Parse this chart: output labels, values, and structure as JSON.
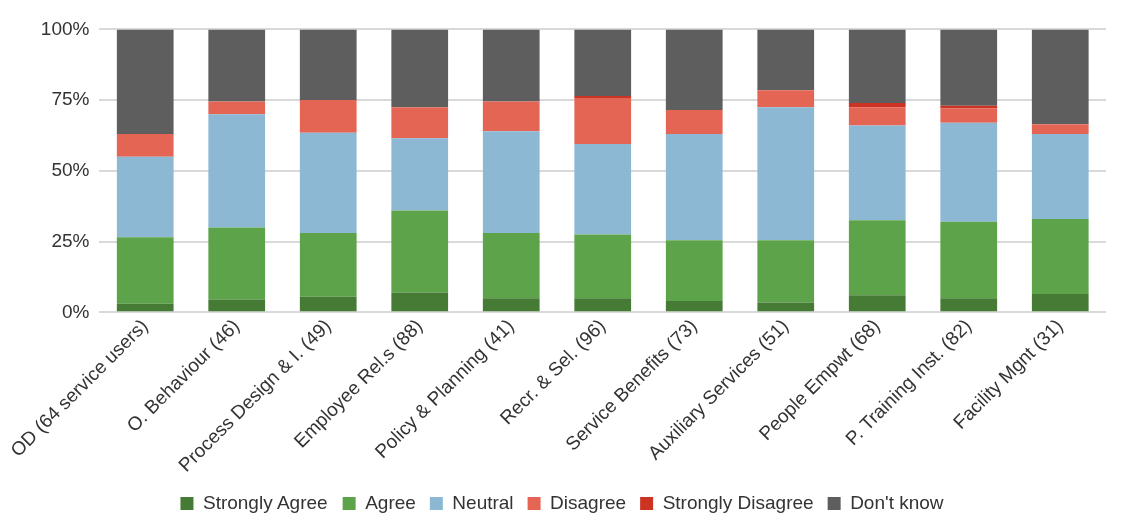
{
  "chart_data": {
    "type": "bar",
    "stacked": true,
    "categories": [
      "OD (64 service users)",
      "O. Behaviour (46)",
      "Process Design & I. (49)",
      "Employee Rel.s (88)",
      "Policy & Planning (41)",
      "Recr. & Sel. (96)",
      "Service Benefits (73)",
      "Auxiliary Services (51)",
      "People Empwt (68)",
      "P. Training Inst. (82)",
      "Facility Mgnt (31)"
    ],
    "series": [
      {
        "name": "Strongly Agree",
        "color": "#467b36",
        "values": [
          3,
          4.5,
          5.5,
          7,
          5,
          5,
          4,
          3.5,
          6,
          5,
          6.5
        ]
      },
      {
        "name": "Agree",
        "color": "#5ca34a",
        "values": [
          23.5,
          25.5,
          22.5,
          29,
          23,
          22.5,
          21.5,
          22,
          26.5,
          27,
          26.5
        ]
      },
      {
        "name": "Neutral",
        "color": "#8cb8d4",
        "values": [
          28.5,
          40,
          35.5,
          25.5,
          36,
          32,
          37.5,
          47,
          33.5,
          35,
          30
        ]
      },
      {
        "name": "Disagree",
        "color": "#e46554",
        "values": [
          8,
          4.5,
          11.5,
          11,
          10.5,
          16,
          8.5,
          6,
          6.5,
          5,
          3.5
        ]
      },
      {
        "name": "Strongly Disagree",
        "color": "#cc3322",
        "values": [
          0,
          0,
          0,
          0,
          0,
          1,
          0,
          0,
          1.5,
          1,
          0
        ]
      },
      {
        "name": "Don't know",
        "color": "#5e5e5e",
        "values": [
          37,
          25.5,
          25,
          27.5,
          25.5,
          23.5,
          28.5,
          21.5,
          26,
          27,
          33.5
        ]
      }
    ],
    "ylim": [
      0,
      100
    ],
    "yticks": [
      {
        "value": 0,
        "label": "0%"
      },
      {
        "value": 25,
        "label": "25%"
      },
      {
        "value": 50,
        "label": "50%"
      },
      {
        "value": 75,
        "label": "75%"
      },
      {
        "value": 100,
        "label": "100%"
      }
    ],
    "grid": "y",
    "legend": "bottom"
  }
}
